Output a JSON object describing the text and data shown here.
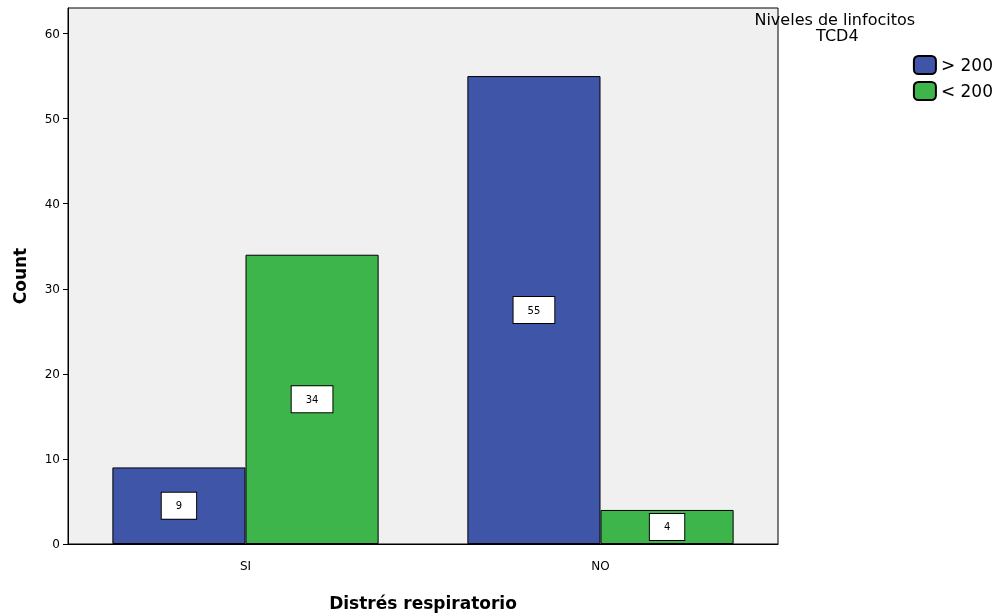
{
  "chart_data": {
    "type": "bar",
    "xlabel": "Distrés respiratorio",
    "ylabel": "Count",
    "legend_title": "Niveles de linfocitos TCD4",
    "categories": [
      "SI",
      "NO"
    ],
    "series": [
      {
        "name": "> 200",
        "color": "#3f56a8",
        "values": [
          9,
          55
        ]
      },
      {
        "name": "< 200",
        "color": "#3db54a",
        "values": [
          34,
          4
        ]
      }
    ],
    "ylim": [
      0,
      63
    ],
    "yticks": [
      0,
      10,
      20,
      30,
      40,
      50,
      60
    ],
    "grid": false,
    "legend": "top right",
    "data_labels": true
  }
}
